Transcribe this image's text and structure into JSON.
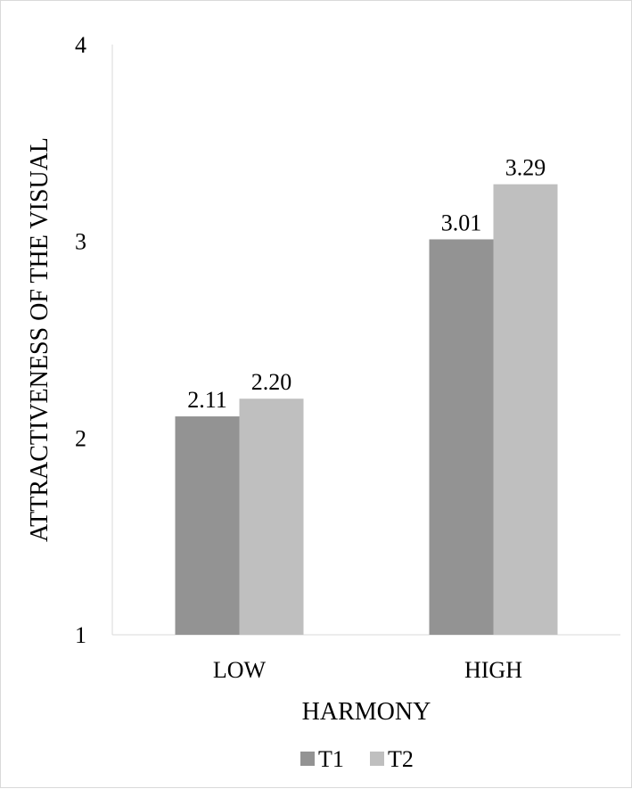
{
  "chart_data": {
    "type": "bar",
    "categories": [
      "LOW",
      "HIGH"
    ],
    "series": [
      {
        "name": "T1",
        "values": [
          2.11,
          3.01
        ],
        "labels": [
          "2.11",
          "3.01"
        ],
        "color": "#939393"
      },
      {
        "name": "T2",
        "values": [
          2.2,
          3.29
        ],
        "labels": [
          "2.20",
          "3.29"
        ],
        "color": "#bfbfbf"
      }
    ],
    "xlabel": "HARMONY",
    "ylabel": "ATTRACTIVENESS OF THE VISUAL",
    "ylim": [
      1,
      4
    ],
    "yticks": [
      "1",
      "2",
      "3",
      "4"
    ],
    "grid": false,
    "legend_position": "bottom",
    "axis_color": "#d9d9d9"
  }
}
